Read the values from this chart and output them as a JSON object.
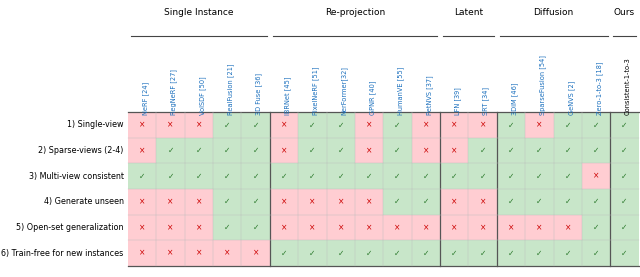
{
  "col_groups": [
    {
      "name": "Single Instance",
      "start": 0,
      "end": 4
    },
    {
      "name": "Re-projection",
      "start": 5,
      "end": 10
    },
    {
      "name": "Latent",
      "start": 11,
      "end": 12
    },
    {
      "name": "Diffusion",
      "start": 13,
      "end": 16
    },
    {
      "name": "Ours",
      "start": 17,
      "end": 17
    }
  ],
  "col_labels": [
    "NeRF [24]",
    "RegNeRF [27]",
    "VolSDF [50]",
    "RealFusion [21]",
    "3D Fuse [36]",
    "IBRNet [45]",
    "PixelNeRF [51]",
    "NerFormer[32]",
    "GPNR [40]",
    "HumanVE [55]",
    "PetNVS [37]",
    "LFN [39]",
    "SRT [34]",
    "3DiM [46]",
    "SparseFusion [54]",
    "GeNVS [2]",
    "Zero-1-to-3 [18]",
    "Consistent-1-to-3"
  ],
  "row_labels": [
    "1) Single-view",
    "2) Sparse-views (2-4)",
    "3) Multi-view consistent",
    "4) Generate unseen",
    "5) Open-set generalization",
    "6) Train-free for new instances"
  ],
  "cells": [
    [
      "x",
      "x",
      "x",
      "c",
      "c",
      "x",
      "c",
      "c",
      "x",
      "c",
      "x",
      "x",
      "x",
      "c",
      "x",
      "c",
      "c",
      "c"
    ],
    [
      "x",
      "c",
      "c",
      "c",
      "c",
      "x",
      "c",
      "c",
      "x",
      "c",
      "x",
      "x",
      "c",
      "c",
      "c",
      "c",
      "c",
      "c"
    ],
    [
      "c",
      "c",
      "c",
      "c",
      "c",
      "c",
      "c",
      "c",
      "c",
      "c",
      "c",
      "c",
      "c",
      "c",
      "c",
      "c",
      "x",
      "c"
    ],
    [
      "x",
      "x",
      "x",
      "c",
      "c",
      "x",
      "x",
      "x",
      "x",
      "c",
      "c",
      "x",
      "x",
      "c",
      "c",
      "c",
      "c",
      "c"
    ],
    [
      "x",
      "x",
      "x",
      "c",
      "c",
      "x",
      "x",
      "x",
      "x",
      "x",
      "x",
      "x",
      "x",
      "x",
      "x",
      "x",
      "c",
      "c"
    ],
    [
      "x",
      "x",
      "x",
      "x",
      "x",
      "c",
      "c",
      "c",
      "c",
      "c",
      "c",
      "c",
      "c",
      "c",
      "c",
      "c",
      "c",
      "c"
    ]
  ],
  "check_color": "#2d7a2d",
  "cross_color": "#cc0000",
  "green_bg": "#c8e6c9",
  "red_bg": "#ffcdd2",
  "col_label_color": "#1a6fbd",
  "group_line_color": "#444444",
  "fig_width": 6.4,
  "fig_height": 2.77,
  "dpi": 100
}
